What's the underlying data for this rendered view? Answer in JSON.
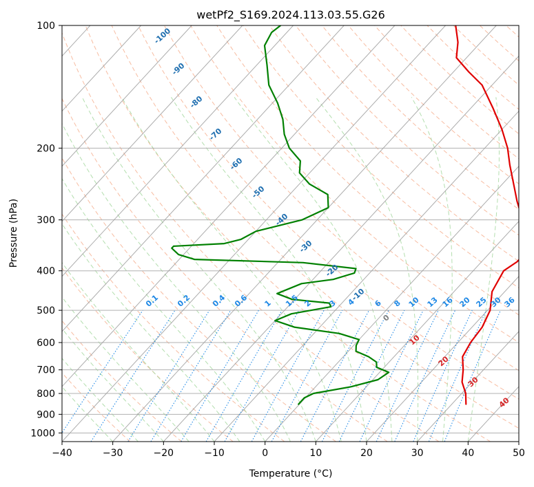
{
  "chart_data": {
    "type": "line",
    "subtype": "skew-T log-P diagram",
    "title": "wetPf2_S169.2024.113.03.55.G26",
    "xlabel": "Temperature (°C)",
    "ylabel": "Pressure (hPa)",
    "xlim": [
      -40,
      50
    ],
    "ylim": [
      1050,
      100
    ],
    "y_scale": "log",
    "x_ticks": [
      -40,
      -30,
      -20,
      -10,
      0,
      10,
      20,
      30,
      40,
      50
    ],
    "y_ticks": [
      100,
      200,
      300,
      400,
      500,
      600,
      700,
      800,
      900,
      1000
    ],
    "grid": true,
    "series": [
      {
        "color": "#e00000",
        "points": [
          [
            850,
            32.8
          ],
          [
            800,
            30.8
          ],
          [
            750,
            28.0
          ],
          [
            700,
            26.0
          ],
          [
            650,
            23.5
          ],
          [
            600,
            22.5
          ],
          [
            550,
            22.0
          ],
          [
            500,
            20.5
          ],
          [
            450,
            17.5
          ],
          [
            400,
            16.0
          ],
          [
            380,
            17.0
          ],
          [
            360,
            17.0
          ],
          [
            330,
            14.0
          ],
          [
            300,
            10.5
          ],
          [
            270,
            6.0
          ],
          [
            250,
            3.0
          ],
          [
            220,
            -2.0
          ],
          [
            200,
            -5.5
          ],
          [
            180,
            -10.0
          ],
          [
            160,
            -15.5
          ],
          [
            140,
            -22.0
          ],
          [
            130,
            -27.0
          ],
          [
            120,
            -32.0
          ],
          [
            110,
            -34.5
          ],
          [
            100,
            -38.0
          ]
        ]
      },
      {
        "color": "#008000",
        "points": [
          [
            850,
            -0.2
          ],
          [
            820,
            -0.2
          ],
          [
            800,
            0.8
          ],
          [
            770,
            7.0
          ],
          [
            740,
            11.0
          ],
          [
            710,
            11.8
          ],
          [
            690,
            8.5
          ],
          [
            670,
            7.5
          ],
          [
            650,
            5.0
          ],
          [
            630,
            1.5
          ],
          [
            610,
            0.5
          ],
          [
            590,
            0.0
          ],
          [
            570,
            -5.0
          ],
          [
            550,
            -15.0
          ],
          [
            530,
            -20.0
          ],
          [
            510,
            -18.0
          ],
          [
            490,
            -11.5
          ],
          [
            480,
            -12.5
          ],
          [
            470,
            -20.5
          ],
          [
            455,
            -24.5
          ],
          [
            430,
            -21.5
          ],
          [
            420,
            -16.0
          ],
          [
            405,
            -13.0
          ],
          [
            395,
            -13.5
          ],
          [
            382,
            -25.0
          ],
          [
            375,
            -47.0
          ],
          [
            365,
            -51.0
          ],
          [
            352,
            -53.5
          ],
          [
            348,
            -53.5
          ],
          [
            343,
            -44.0
          ],
          [
            335,
            -41.5
          ],
          [
            320,
            -40.0
          ],
          [
            300,
            -33.0
          ],
          [
            280,
            -30.0
          ],
          [
            260,
            -32.5
          ],
          [
            245,
            -38.0
          ],
          [
            230,
            -42.0
          ],
          [
            215,
            -44.0
          ],
          [
            200,
            -48.5
          ],
          [
            185,
            -52.0
          ],
          [
            170,
            -55.0
          ],
          [
            155,
            -59.0
          ],
          [
            140,
            -64.0
          ],
          [
            125,
            -68.0
          ],
          [
            112,
            -72.0
          ],
          [
            104,
            -73.0
          ],
          [
            100,
            -72.5
          ]
        ]
      }
    ],
    "isotherm_labels": [
      "-100",
      "-90",
      "-80",
      "-70",
      "-60",
      "-50",
      "-40",
      "-30",
      "-20",
      "-10"
    ],
    "mixing_ratio_labels": [
      "0.1",
      "0.2",
      "0.4",
      "0.6",
      "1",
      "1.5",
      "2",
      "3",
      "4",
      "6",
      "8",
      "10",
      "13",
      "16",
      "20",
      "25",
      "30",
      "36"
    ],
    "red_labels": [
      "10",
      "20",
      "30",
      "40"
    ],
    "gray_label": "0",
    "colors": {
      "temperature": "#e00000",
      "dewpoint": "#008000",
      "dry_adiabat": "#f4a582",
      "moist_adiabat": "#a6d8a0",
      "isotherm": "#9e9e9e",
      "mixing_ratio": "#1e88e5",
      "isotherm_label": "#1f6fb0",
      "red_label": "#d62728"
    }
  }
}
